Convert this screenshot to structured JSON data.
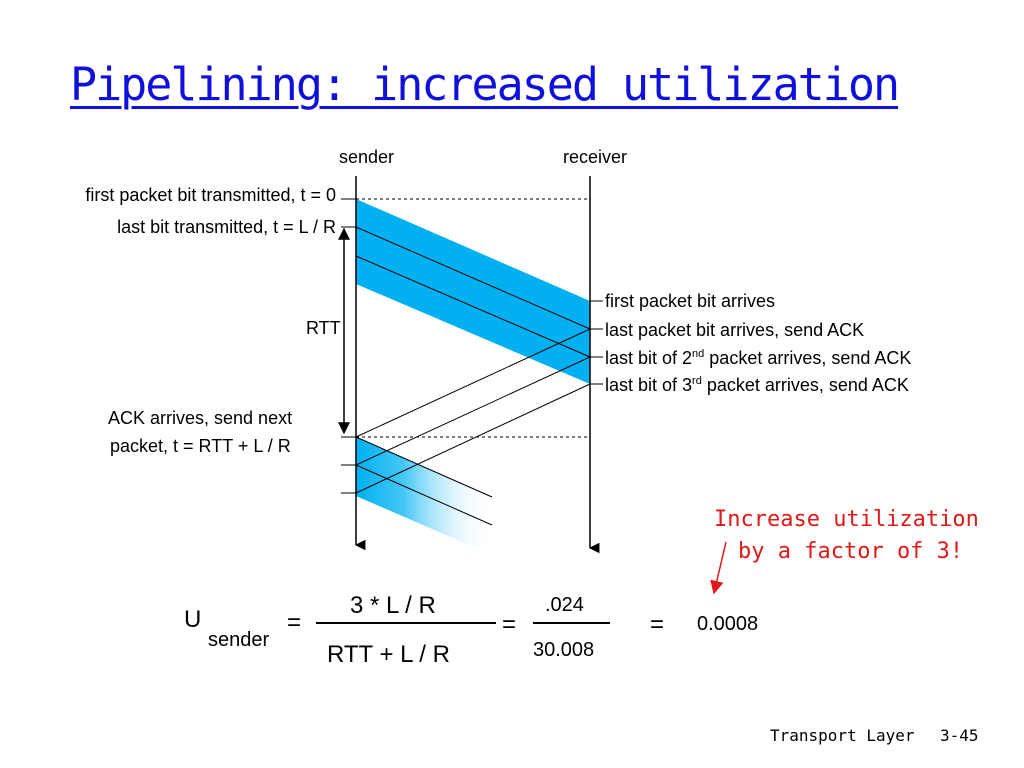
{
  "title": "Pipelining: increased utilization",
  "diagram": {
    "sender_label": "sender",
    "receiver_label": "receiver",
    "left_labels": {
      "first_bit": "first packet bit transmitted, t = 0",
      "last_bit": "last bit transmitted, t = L / R",
      "rtt": "RTT",
      "ack_line1": "ACK arrives, send next",
      "ack_line2": "packet, t = RTT + L / R"
    },
    "right_labels": {
      "first_arrives": "first packet bit arrives",
      "last_arrives": "last packet bit arrives, send ACK",
      "second": {
        "pre": "last bit of 2",
        "sup": "nd",
        "post": " packet arrives, send ACK"
      },
      "third": {
        "pre": "last bit of 3",
        "sup": "rd",
        "post": " packet arrives, send ACK"
      }
    },
    "packet_color": "#00b0f0"
  },
  "equation": {
    "u": "U",
    "sub": "sender",
    "eq1": "=",
    "num": "3 * L / R",
    "den": "RTT + L / R",
    "eq2": "=",
    "num2": ".024",
    "den2": "30.008",
    "eq3": "=",
    "result": "0.0008"
  },
  "annotation": {
    "line1": "Increase utilization",
    "line2": "by a factor of 3!",
    "color": "#e01818"
  },
  "footer": {
    "label": "Transport Layer",
    "page": "3-45"
  }
}
